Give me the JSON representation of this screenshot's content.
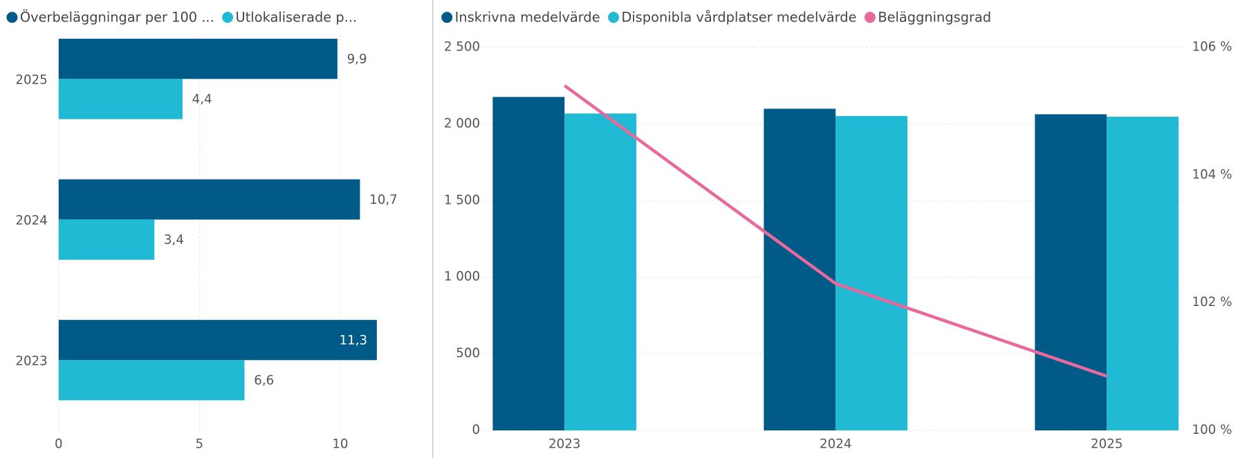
{
  "chart_data": [
    {
      "type": "hbar",
      "categories": [
        "2025",
        "2024",
        "2023"
      ],
      "series": [
        {
          "name": "Överbeläggningar per 100 ...",
          "color": "#005a87",
          "values": [
            9.9,
            10.7,
            11.3
          ],
          "value_labels": [
            "9,9",
            "10,7",
            "11,3"
          ]
        },
        {
          "name": "Utlokaliserade p...",
          "color": "#20bad4",
          "values": [
            4.4,
            3.4,
            6.6
          ],
          "value_labels": [
            "4,4",
            "3,4",
            "6,6"
          ]
        }
      ],
      "xlim": [
        0,
        12.5
      ],
      "xticks": [
        0,
        5,
        10
      ],
      "grid": true
    },
    {
      "type": "bar",
      "categories": [
        "2023",
        "2024",
        "2025"
      ],
      "series": [
        {
          "name": "Inskrivna medelvärde",
          "color": "#005a87",
          "values": [
            2176,
            2099,
            2063
          ]
        },
        {
          "name": "Disponibla vårdplatser medelvärde",
          "color": "#20bad4",
          "values": [
            2068,
            2052,
            2047
          ]
        },
        {
          "name": "Beläggningsgrad",
          "color": "#e8699c",
          "values": [
            105.4,
            102.3,
            100.85
          ],
          "axis": "y2",
          "kind": "line"
        }
      ],
      "ylim": [
        0,
        2500
      ],
      "yticks": [
        0,
        500,
        {
          "value": 1000,
          "label": "1 000"
        },
        {
          "value": 1500,
          "label": "1 500"
        },
        {
          "value": 2000,
          "label": "2 000"
        },
        {
          "value": 2500,
          "label": "2 500"
        }
      ],
      "y2lim": [
        100,
        106
      ],
      "y2ticks": [
        {
          "value": 100,
          "label": "100 %"
        },
        {
          "value": 102,
          "label": "102 %"
        },
        {
          "value": 104,
          "label": "104 %"
        },
        {
          "value": 106,
          "label": "106 %"
        }
      ],
      "grid": true
    }
  ]
}
